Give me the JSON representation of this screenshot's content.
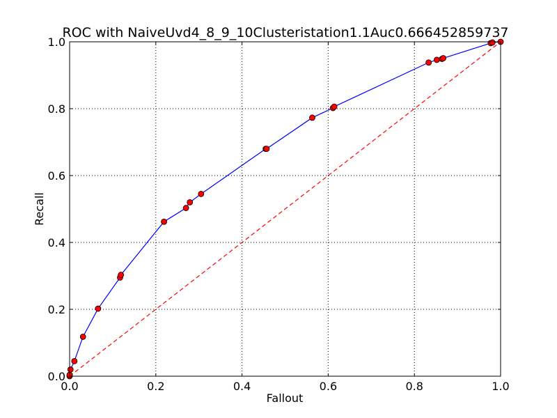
{
  "chart_data": {
    "type": "line",
    "title": "ROC with NaiveUvd4_8_9_10Clusteristation1.1Auc0.666452859737",
    "xlabel": "Fallout",
    "ylabel": "Recall",
    "xlim": [
      0.0,
      1.0
    ],
    "ylim": [
      0.0,
      1.0
    ],
    "x_ticks": [
      "0.0",
      "0.2",
      "0.4",
      "0.6",
      "0.8",
      "1.0"
    ],
    "y_ticks": [
      "0.0",
      "0.2",
      "0.4",
      "0.6",
      "0.8",
      "1.0"
    ],
    "grid": true,
    "series": [
      {
        "style": "solid",
        "color": "#0000ff",
        "marker": "circle",
        "marker_color": "#ff0000",
        "x": [
          0.0,
          0.0,
          0.002,
          0.011,
          0.031,
          0.066,
          0.117,
          0.119,
          0.219,
          0.27,
          0.279,
          0.305,
          0.455,
          0.457,
          0.563,
          0.611,
          0.614,
          0.833,
          0.852,
          0.864,
          0.867,
          0.977,
          0.981,
          1.0
        ],
        "y": [
          0.0,
          0.004,
          0.02,
          0.045,
          0.118,
          0.202,
          0.295,
          0.303,
          0.462,
          0.503,
          0.52,
          0.545,
          0.68,
          0.68,
          0.773,
          0.802,
          0.806,
          0.938,
          0.946,
          0.949,
          0.951,
          0.996,
          0.998,
          1.0
        ]
      },
      {
        "style": "dashed",
        "color": "#ff0000",
        "x": [
          0.0,
          1.0
        ],
        "y": [
          0.0,
          1.0
        ]
      }
    ]
  }
}
